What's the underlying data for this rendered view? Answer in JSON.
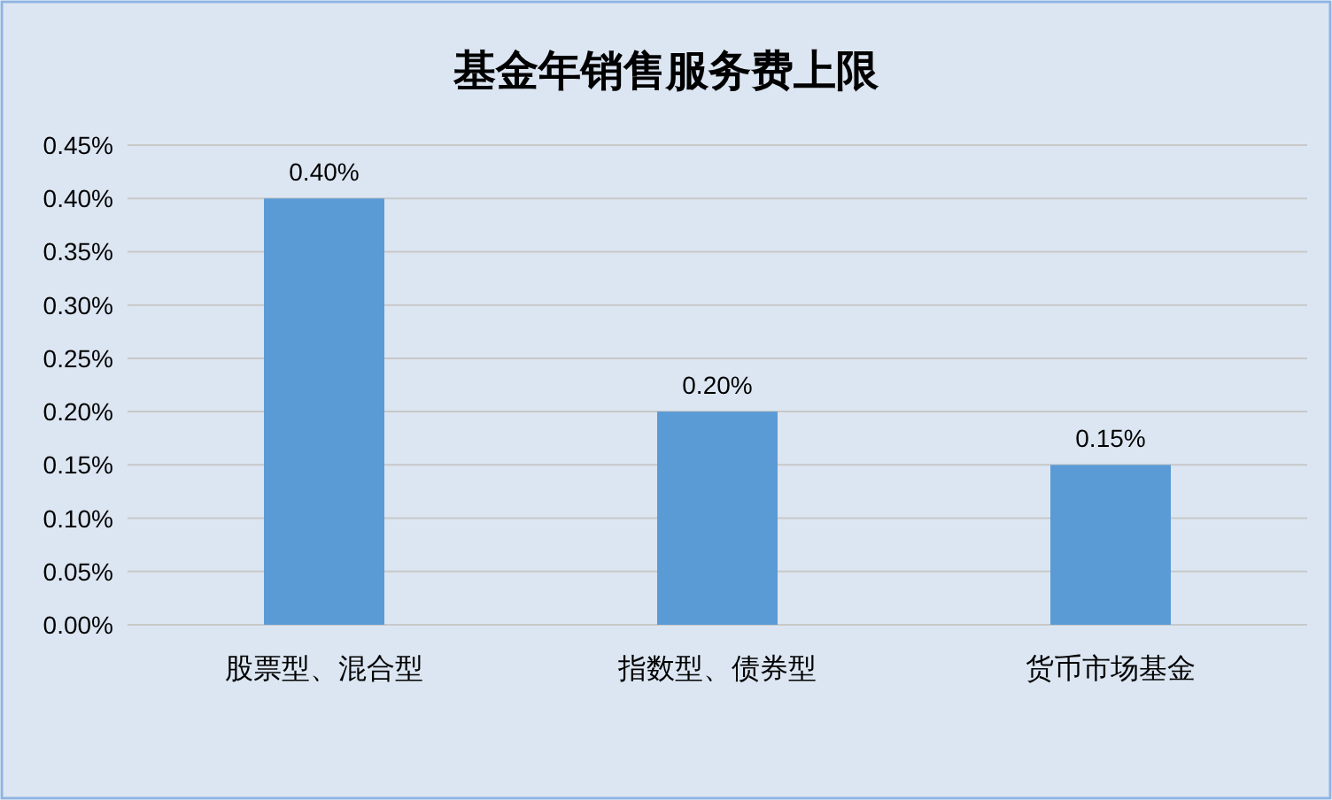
{
  "chart_data": {
    "type": "bar",
    "title": "基金年销售服务费上限",
    "categories": [
      "股票型、混合型",
      "指数型、债券型",
      "货币市场基金"
    ],
    "values": [
      0.4,
      0.2,
      0.15
    ],
    "color": "#5b9bd5",
    "value_labels": [
      "0.40%",
      "0.20%",
      "0.15%"
    ],
    "ylim": [
      0,
      0.45
    ],
    "yticks": [
      {
        "value": 0,
        "label": "0.00%"
      },
      {
        "value": 0.05,
        "label": "0.05%"
      },
      {
        "value": 0.1,
        "label": "0.10%"
      },
      {
        "value": 0.15,
        "label": "0.15%"
      },
      {
        "value": 0.2,
        "label": "0.20%"
      },
      {
        "value": 0.25,
        "label": "0.25%"
      },
      {
        "value": 0.3,
        "label": "0.30%"
      },
      {
        "value": 0.35,
        "label": "0.35%"
      },
      {
        "value": 0.4,
        "label": "0.40%"
      },
      {
        "value": 0.45,
        "label": "0.45%"
      }
    ],
    "grid": "y"
  }
}
